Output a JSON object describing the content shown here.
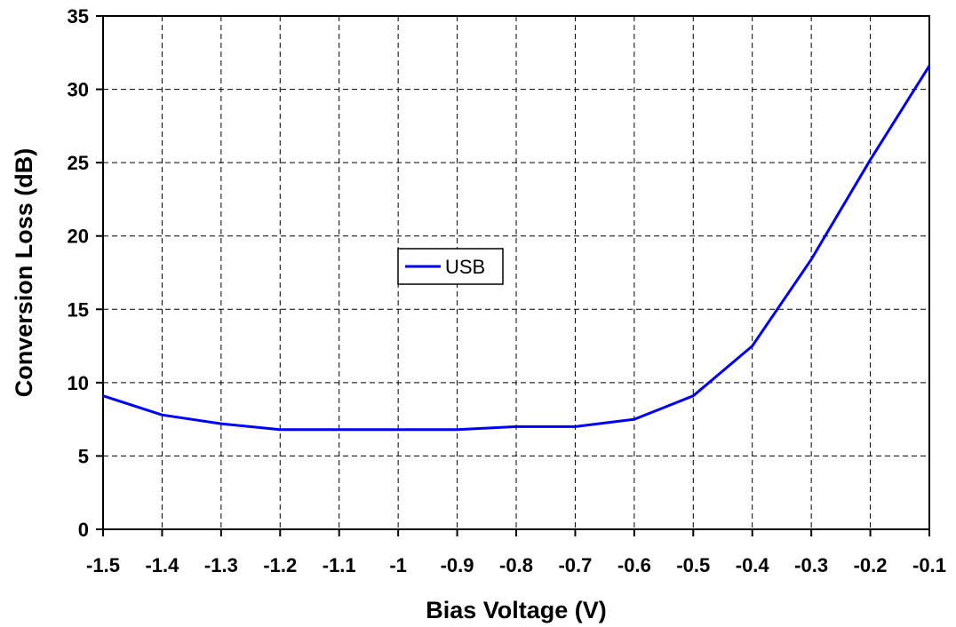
{
  "chart_data": {
    "type": "line",
    "title": "",
    "xlabel": "Bias Voltage (V)",
    "ylabel": "Conversion Loss (dB)",
    "xlim": [
      -1.5,
      -0.1
    ],
    "ylim": [
      0,
      35
    ],
    "x_ticks": [
      -1.5,
      -1.4,
      -1.3,
      -1.2,
      -1.1,
      -1,
      -0.9,
      -0.8,
      -0.7,
      -0.6,
      -0.5,
      -0.4,
      -0.3,
      -0.2,
      -0.1
    ],
    "x_tick_labels": [
      "-1.5",
      "-1.4",
      "-1.3",
      "-1.2",
      "-1.1",
      "-1",
      "-0.9",
      "-0.8",
      "-0.7",
      "-0.6",
      "-0.5",
      "-0.4",
      "-0.3",
      "-0.2",
      "-0.1"
    ],
    "y_ticks": [
      0,
      5,
      10,
      15,
      20,
      25,
      30,
      35
    ],
    "y_tick_labels": [
      "0",
      "5",
      "10",
      "15",
      "20",
      "25",
      "30",
      "35"
    ],
    "grid": true,
    "legend": {
      "placement": "center",
      "entries": [
        "USB"
      ]
    },
    "series": [
      {
        "name": "USB",
        "color": "#0000ff",
        "x": [
          -1.5,
          -1.4,
          -1.3,
          -1.2,
          -1.1,
          -1,
          -0.9,
          -0.8,
          -0.7,
          -0.6,
          -0.5,
          -0.4,
          -0.3,
          -0.2,
          -0.1
        ],
        "y": [
          9.1,
          7.8,
          7.2,
          6.8,
          6.8,
          6.8,
          6.8,
          7.0,
          7.0,
          7.5,
          9.1,
          12.5,
          18.4,
          25.2,
          31.6
        ]
      }
    ]
  }
}
